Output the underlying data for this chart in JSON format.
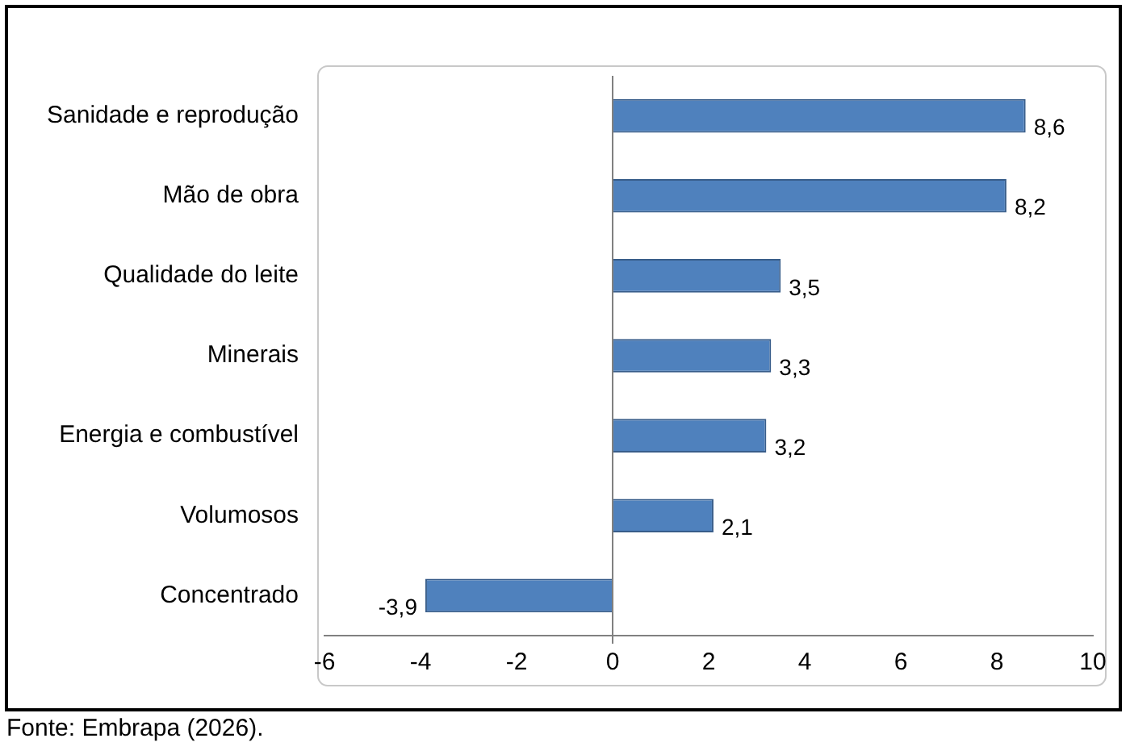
{
  "chart_data": {
    "type": "bar",
    "orientation": "horizontal",
    "categories": [
      "Sanidade e reprodução",
      "Mão de obra",
      "Qualidade do leite",
      "Minerais",
      "Energia e combustível",
      "Volumosos",
      "Concentrado"
    ],
    "values": [
      8.6,
      8.2,
      3.5,
      3.3,
      3.2,
      2.1,
      -3.9
    ],
    "value_labels": [
      "8,6",
      "8,2",
      "3,5",
      "3,3",
      "3,2",
      "2,1",
      "-3,9"
    ],
    "color": "#4f81bd",
    "xlim": [
      -6,
      10
    ],
    "xticks": [
      -6,
      -4,
      -2,
      0,
      2,
      4,
      6,
      8,
      10
    ],
    "legend": false,
    "annotations": [
      "Fonte: Embrapa (2026)."
    ]
  }
}
